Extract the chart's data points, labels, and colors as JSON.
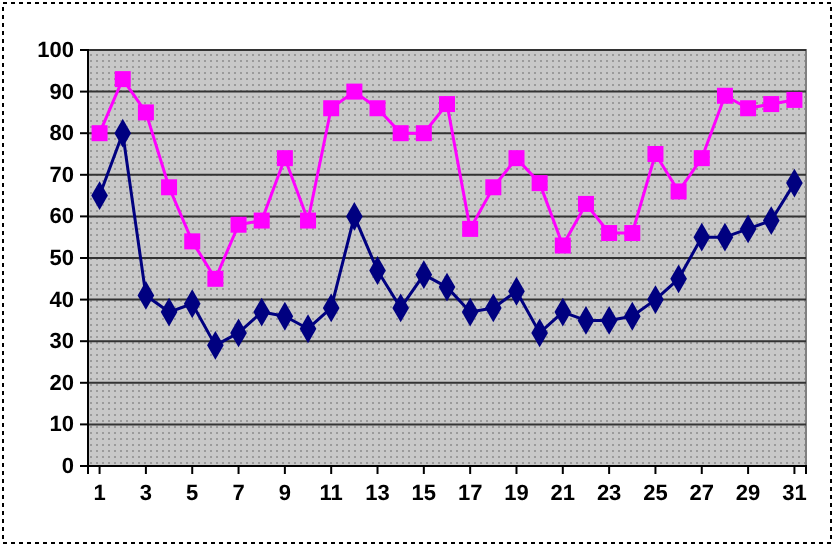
{
  "chart_data": {
    "type": "line",
    "x": [
      1,
      2,
      3,
      4,
      5,
      6,
      7,
      8,
      9,
      10,
      11,
      12,
      13,
      14,
      15,
      16,
      17,
      18,
      19,
      20,
      21,
      22,
      23,
      24,
      25,
      26,
      27,
      28,
      29,
      30,
      31
    ],
    "xlim": [
      0.5,
      31.5
    ],
    "xticks": [
      1,
      3,
      5,
      7,
      9,
      11,
      13,
      15,
      17,
      19,
      21,
      23,
      25,
      27,
      29,
      31
    ],
    "series": [
      {
        "color": "#ff00ff",
        "marker": "square",
        "values": [
          80,
          93,
          85,
          67,
          54,
          45,
          58,
          59,
          74,
          59,
          86,
          90,
          86,
          80,
          80,
          87,
          57,
          67,
          74,
          68,
          53,
          63,
          56,
          56,
          75,
          66,
          74,
          89,
          86,
          87,
          88
        ]
      },
      {
        "color": "#000080",
        "marker": "diamond",
        "values": [
          65,
          80,
          41,
          37,
          39,
          29,
          32,
          37,
          36,
          33,
          38,
          60,
          47,
          38,
          46,
          43,
          37,
          38,
          42,
          32,
          37,
          35,
          35,
          36,
          40,
          45,
          55,
          55,
          57,
          59,
          68
        ]
      }
    ],
    "ylim": [
      0,
      100
    ],
    "yticks": [
      0,
      10,
      20,
      30,
      40,
      50,
      60,
      70,
      80,
      90,
      100
    ],
    "grid": "y"
  }
}
